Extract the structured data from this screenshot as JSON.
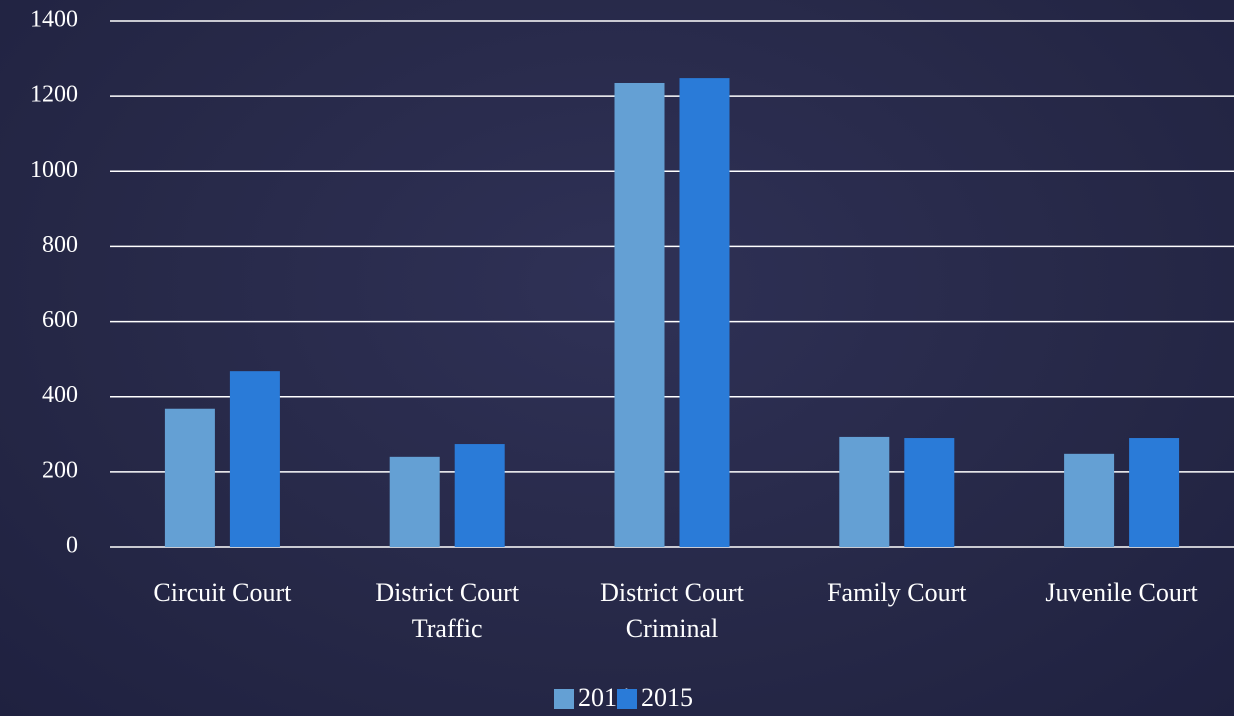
{
  "chart_data": {
    "type": "bar",
    "categories": [
      "Circuit Court",
      "District Court Traffic",
      "District Court Criminal",
      "Family Court",
      "Juvenile Court"
    ],
    "series": [
      {
        "name": "2014",
        "color": "#64a0d4",
        "values": [
          368,
          240,
          1235,
          293,
          248
        ]
      },
      {
        "name": "2015",
        "color": "#2a7bd8",
        "values": [
          468,
          274,
          1248,
          290,
          290
        ]
      }
    ],
    "ylim": [
      0,
      1400
    ],
    "yticks": [
      0,
      200,
      400,
      600,
      800,
      1000,
      1200,
      1400
    ],
    "grid": true,
    "legend": "bottom"
  }
}
